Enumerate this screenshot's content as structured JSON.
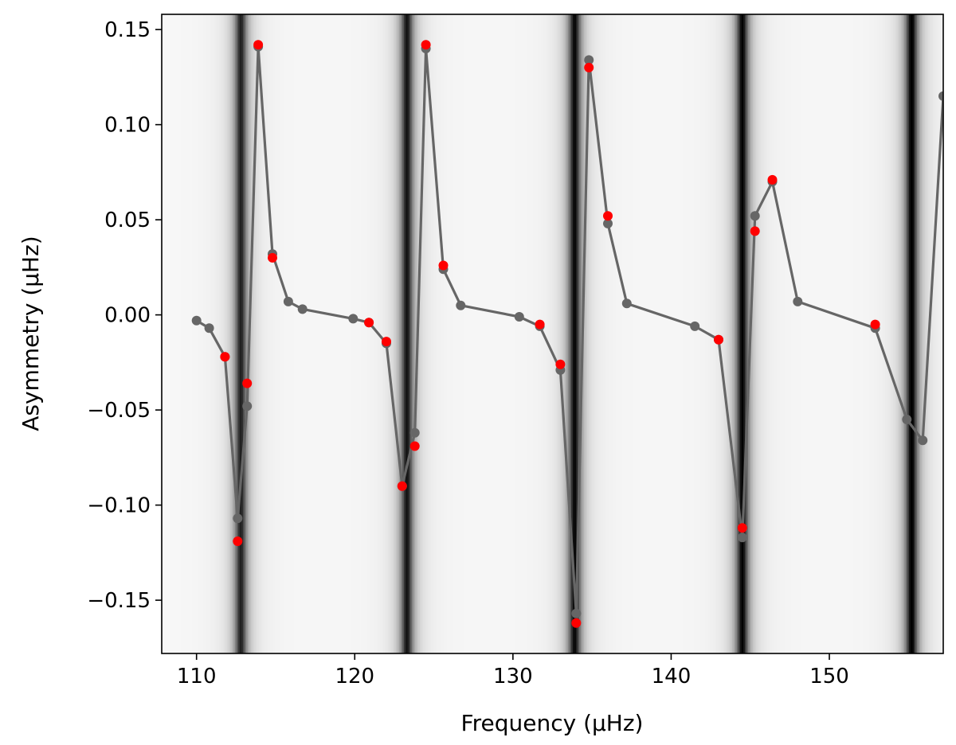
{
  "chart_data": {
    "type": "line",
    "title": "",
    "xlabel": "Frequency (μHz)",
    "ylabel": "Asymmetry (μHz)",
    "xlim": [
      107.8,
      157.2
    ],
    "ylim": [
      -0.178,
      0.158
    ],
    "x_ticks": [
      110,
      120,
      130,
      140,
      150
    ],
    "x_tick_labels": [
      "110",
      "120",
      "130",
      "140",
      "150"
    ],
    "y_ticks": [
      0.15,
      0.1,
      0.05,
      0.0,
      -0.05,
      -0.1,
      -0.15
    ],
    "y_tick_labels": [
      "0.15",
      "0.10",
      "0.05",
      "0.00",
      "−0.05",
      "−0.10",
      "−0.15"
    ],
    "grid": false,
    "background_dark_bands": [
      {
        "center": 112.8,
        "width": 0.9,
        "strength": 0.85
      },
      {
        "center": 123.3,
        "width": 0.9,
        "strength": 0.9
      },
      {
        "center": 133.9,
        "width": 0.9,
        "strength": 0.95
      },
      {
        "center": 144.5,
        "width": 0.9,
        "strength": 0.97
      },
      {
        "center": 155.2,
        "width": 0.9,
        "strength": 1.0
      }
    ],
    "colors": {
      "line": "#666666",
      "model_points": "#666666",
      "observed_points": "#ff0000",
      "band": "#000000"
    },
    "series": [
      {
        "kind": "line-with-markers",
        "color": "#666666",
        "x": [
          110.0,
          110.8,
          111.8,
          112.6,
          113.2,
          113.9,
          114.8,
          115.8,
          116.7,
          119.9,
          120.9,
          122.0,
          123.0,
          123.8,
          124.5,
          125.6,
          126.7,
          130.4,
          131.7,
          133.0,
          134.0,
          134.8,
          136.0,
          137.2,
          141.5,
          143.0,
          144.5,
          145.3,
          146.4,
          148.0,
          152.9,
          154.9,
          155.9,
          157.2
        ],
        "values": [
          -0.003,
          -0.007,
          -0.022,
          -0.107,
          -0.048,
          0.141,
          0.032,
          0.007,
          0.003,
          -0.002,
          -0.004,
          -0.015,
          -0.09,
          -0.062,
          0.14,
          0.024,
          0.005,
          -0.001,
          -0.006,
          -0.029,
          -0.157,
          0.134,
          0.048,
          0.006,
          -0.006,
          -0.013,
          -0.117,
          0.052,
          0.07,
          0.007,
          -0.007,
          -0.055,
          -0.066,
          0.115
        ]
      },
      {
        "kind": "markers",
        "color": "#ff0000",
        "x": [
          111.8,
          112.6,
          113.2,
          113.9,
          114.8,
          120.9,
          122.0,
          123.0,
          123.8,
          124.5,
          125.6,
          131.7,
          133.0,
          134.0,
          134.8,
          136.0,
          143.0,
          144.5,
          145.3,
          146.4,
          152.9
        ],
        "values": [
          -0.022,
          -0.119,
          -0.036,
          0.142,
          0.03,
          -0.004,
          -0.014,
          -0.09,
          -0.069,
          0.142,
          0.026,
          -0.005,
          -0.026,
          -0.162,
          0.13,
          0.052,
          -0.013,
          -0.112,
          0.044,
          0.071,
          -0.005
        ]
      }
    ]
  }
}
